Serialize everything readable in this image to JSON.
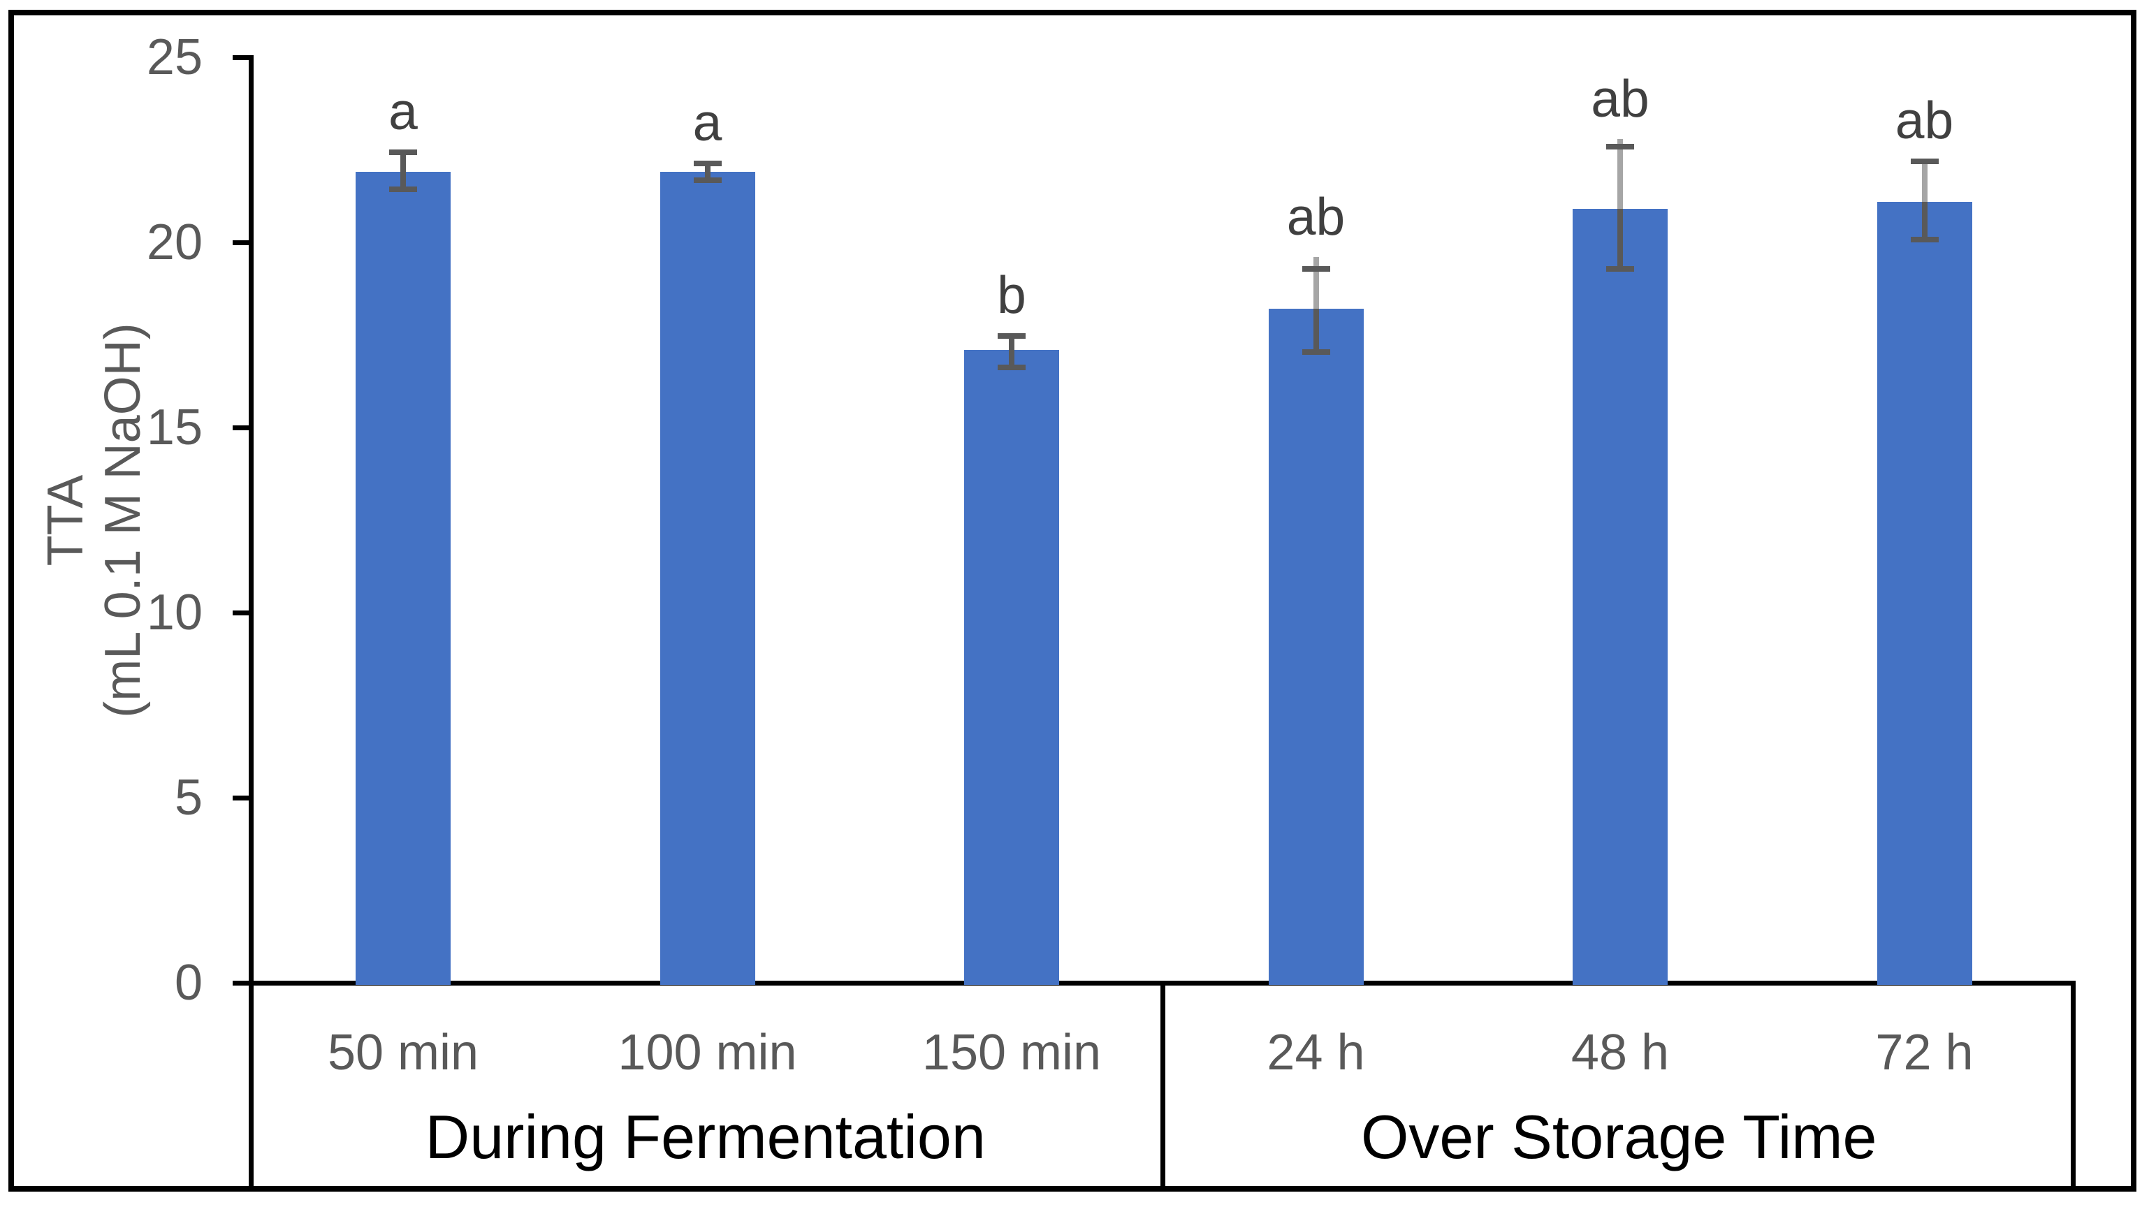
{
  "chart_data": {
    "type": "bar",
    "title": "",
    "ylabel_line1": "TTA",
    "ylabel_line2": "(mL 0.1 M NaOH)",
    "ylabel": "TTA (mL 0.1 M NaOH)",
    "ylim": [
      0,
      25
    ],
    "yticks": [
      25,
      20,
      15,
      10,
      5,
      0
    ],
    "grid": false,
    "legend": false,
    "groups": [
      {
        "label": "During Fermentation",
        "bars": [
          {
            "category": "50 min",
            "value": 21.9,
            "err_high": 22.45,
            "err_low": 21.45,
            "letter": "a"
          },
          {
            "category": "100 min",
            "value": 21.9,
            "err_high": 22.15,
            "err_low": 21.7,
            "letter": "a"
          },
          {
            "category": "150 min",
            "value": 17.1,
            "err_high": 17.5,
            "err_low": 16.65,
            "letter": "b"
          }
        ]
      },
      {
        "label": "Over Storage Time",
        "bars": [
          {
            "category": "24 h",
            "value": 18.2,
            "err_high": 19.3,
            "err_low": 17.05,
            "err_line_top": 19.6,
            "letter": "ab"
          },
          {
            "category": "48 h",
            "value": 20.9,
            "err_high": 22.6,
            "err_low": 19.3,
            "err_line_top": 22.8,
            "letter": "ab"
          },
          {
            "category": "72 h",
            "value": 21.1,
            "err_high": 22.2,
            "err_low": 20.1,
            "letter": "ab"
          }
        ]
      }
    ],
    "colors": {
      "bar": "#4472C4",
      "error_dark": "#595959",
      "error_light": "#A6A6A6",
      "tick_text": "#595959",
      "category_text": "#595959",
      "group_text": "#000000",
      "letter_text": "#404040",
      "axis_line": "#000000",
      "background": "#ffffff"
    }
  }
}
